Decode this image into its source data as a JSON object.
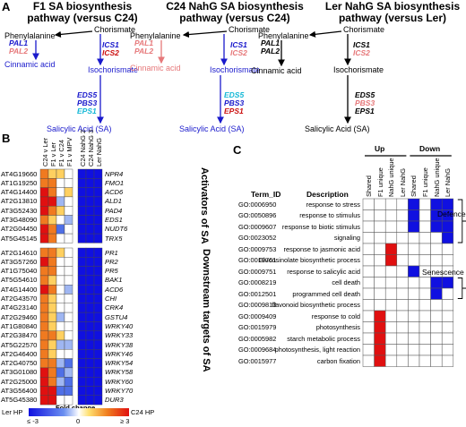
{
  "panel_a": {
    "label": "A",
    "pathways": [
      {
        "title_line1": "F1 SA biosynthesis",
        "title_line2": "pathway (versus C24)"
      },
      {
        "title_line1": "C24 NahG SA biosynthesis",
        "title_line2": "pathway (versus C24)"
      },
      {
        "title_line1": "Ler NahG SA biosynthesis",
        "title_line2": "pathway (versus Ler)"
      }
    ],
    "nodes": {
      "phenylalanine": "Phenylalanine",
      "chorismate": "Chorismate",
      "cinnamic": "Cinnamic acid",
      "isochorismate": "Isochorismate",
      "sa": "Salicylic Acid (SA)",
      "sa2": "Salicylic Acid (SA)",
      "sa3": "Salicylic Acid (SA)"
    },
    "genes": {
      "pal1": "PAL1",
      "pal2": "PAL2",
      "ics1": "ICS1",
      "ics2": "ICS2",
      "eds5": "EDS5",
      "pbs3": "PBS3",
      "eps1": "EPS1"
    }
  },
  "panel_b": {
    "label": "B",
    "columns_left": [
      "C24 v Ler",
      "F1 v Ler",
      "F1 v C24",
      "F1 v MPV"
    ],
    "columns_right": [
      "C24 NahG 2",
      "C24 NahG 3",
      "Ler NahG"
    ],
    "group1_title": "Activators of SA",
    "group2_title": "Downstream targets of SA",
    "group1": [
      {
        "id": "AT4G19660",
        "name": "NPR4"
      },
      {
        "id": "AT1G19250",
        "name": "FMO1"
      },
      {
        "id": "AT4G14400",
        "name": "ACD6"
      },
      {
        "id": "AT2G13810",
        "name": "ALD1"
      },
      {
        "id": "AT3G52430",
        "name": "PAD4"
      },
      {
        "id": "AT3G48090",
        "name": "EDS1"
      },
      {
        "id": "AT2G04450",
        "name": "NUDT6"
      },
      {
        "id": "AT5G45145",
        "name": "TRX5"
      }
    ],
    "group2": [
      {
        "id": "AT2G14610",
        "name": "PR1"
      },
      {
        "id": "AT3G57260",
        "name": "PR2"
      },
      {
        "id": "AT1G75040",
        "name": "PR5"
      },
      {
        "id": "AT5G54610",
        "name": "BAK1"
      },
      {
        "id": "AT4G14400",
        "name": "ACD6"
      },
      {
        "id": "AT2G43570",
        "name": "CHI"
      },
      {
        "id": "AT4G23140",
        "name": "CRK4"
      },
      {
        "id": "AT2G29460",
        "name": "GSTU4"
      },
      {
        "id": "AT1G80840",
        "name": "WRKY40"
      },
      {
        "id": "AT2G38470",
        "name": "WRKY33"
      },
      {
        "id": "AT5G22570",
        "name": "WRKY38"
      },
      {
        "id": "AT2G46400",
        "name": "WRKY46"
      },
      {
        "id": "AT2G40750",
        "name": "WRKY54"
      },
      {
        "id": "AT3G01080",
        "name": "WRKY58"
      },
      {
        "id": "AT2G25000",
        "name": "WRKY60"
      },
      {
        "id": "AT3G56400",
        "name": "WRKY70"
      },
      {
        "id": "AT5G45380",
        "name": "DUR3"
      }
    ],
    "matrix1_left": [
      [
        2,
        1,
        1,
        0
      ],
      [
        2,
        2,
        0,
        0
      ],
      [
        3,
        2,
        0,
        1
      ],
      [
        3,
        3,
        -1,
        0
      ],
      [
        3,
        2,
        1,
        0
      ],
      [
        2,
        1,
        0,
        -1
      ],
      [
        3,
        2,
        -2,
        0
      ],
      [
        3,
        2,
        0,
        0
      ]
    ],
    "matrix1_right": [
      [
        -3,
        -3,
        -3
      ],
      [
        -3,
        -3,
        -3
      ],
      [
        -3,
        -3,
        -3
      ],
      [
        -3,
        -3,
        -3
      ],
      [
        -3,
        -3,
        -3
      ],
      [
        -3,
        -3,
        -3
      ],
      [
        -3,
        -3,
        -3
      ],
      [
        -3,
        -3,
        -3
      ]
    ],
    "matrix2_left": [
      [
        2,
        2,
        1,
        0
      ],
      [
        3,
        2,
        0,
        0
      ],
      [
        2,
        2,
        0,
        0
      ],
      [
        2,
        1,
        0,
        0
      ],
      [
        3,
        2,
        0,
        -1
      ],
      [
        2,
        1,
        0,
        0
      ],
      [
        2,
        1,
        0,
        0
      ],
      [
        2,
        1,
        -1,
        0
      ],
      [
        2,
        1,
        0,
        0
      ],
      [
        2,
        2,
        1,
        0
      ],
      [
        2,
        1,
        -1,
        -1
      ],
      [
        2,
        1,
        0,
        0
      ],
      [
        2,
        2,
        -1,
        -2
      ],
      [
        3,
        2,
        -2,
        -1
      ],
      [
        3,
        2,
        -1,
        -2
      ],
      [
        3,
        3,
        -2,
        -2
      ],
      [
        3,
        3,
        0,
        0
      ]
    ],
    "matrix2_right": [
      [
        -3,
        -3,
        -3
      ],
      [
        -3,
        -3,
        -3
      ],
      [
        -3,
        -3,
        -3
      ],
      [
        -3,
        -3,
        -3
      ],
      [
        -3,
        -3,
        -3
      ],
      [
        -3,
        -3,
        -3
      ],
      [
        -3,
        -3,
        -3
      ],
      [
        -3,
        -3,
        -3
      ],
      [
        -3,
        -3,
        -3
      ],
      [
        -3,
        -3,
        -3
      ],
      [
        -3,
        -3,
        -3
      ],
      [
        -3,
        -3,
        -3
      ],
      [
        -3,
        -3,
        -3
      ],
      [
        -3,
        -3,
        -3
      ],
      [
        -3,
        -3,
        -3
      ],
      [
        -3,
        -3,
        -3
      ],
      [
        -3,
        -3,
        -3
      ]
    ],
    "legend": {
      "title": "Fold change",
      "left_label": "Ler HP",
      "right_label": "C24 HP",
      "min_label": "≤ -3",
      "mid_label": "0",
      "max_label": "≥ 3"
    }
  },
  "panel_c": {
    "label": "C",
    "header_term": "Term_ID",
    "header_desc": "Description",
    "group_up": "Up",
    "group_down": "Down",
    "columns": [
      "Shared",
      "F1 unique",
      "NahG unique",
      "Ler NahG",
      "Shared",
      "F1 unique",
      "NahG unique",
      "Ler NahG"
    ],
    "rows": [
      {
        "id": "GO:0006950",
        "desc": "response to stress",
        "cells": [
          0,
          0,
          0,
          0,
          1,
          0,
          1,
          1
        ]
      },
      {
        "id": "GO:0050896",
        "desc": "response to stimulus",
        "cells": [
          0,
          0,
          0,
          0,
          1,
          0,
          1,
          1
        ]
      },
      {
        "id": "GO:0009607",
        "desc": "response to biotic stimulus",
        "cells": [
          0,
          0,
          0,
          0,
          1,
          0,
          1,
          1
        ]
      },
      {
        "id": "GO:0023052",
        "desc": "signaling",
        "cells": [
          0,
          0,
          0,
          0,
          0,
          0,
          0,
          1
        ]
      },
      {
        "id": "GO:0009753",
        "desc": "response to jasmonic acid",
        "cells": [
          0,
          0,
          2,
          0,
          0,
          0,
          0,
          0
        ]
      },
      {
        "id": "GO:0019761",
        "desc": "Glucosinolate biosynthetic process",
        "cells": [
          0,
          0,
          2,
          0,
          0,
          0,
          0,
          0
        ]
      },
      {
        "id": "GO:0009751",
        "desc": "response to salicylic acid",
        "cells": [
          0,
          0,
          0,
          0,
          1,
          0,
          0,
          0
        ]
      },
      {
        "id": "GO:0008219",
        "desc": "cell death",
        "cells": [
          0,
          0,
          0,
          0,
          0,
          0,
          1,
          1
        ]
      },
      {
        "id": "GO:0012501",
        "desc": "programmed cell death",
        "cells": [
          0,
          0,
          0,
          0,
          0,
          0,
          1,
          0
        ]
      },
      {
        "id": "GO:0009813",
        "desc": "flavonoid biosynthetic process",
        "cells": [
          0,
          0,
          0,
          0,
          0,
          0,
          0,
          0
        ]
      },
      {
        "id": "GO:0009409",
        "desc": "response to cold",
        "cells": [
          0,
          2,
          0,
          0,
          0,
          0,
          0,
          0
        ]
      },
      {
        "id": "GO:0015979",
        "desc": "photosynthesis",
        "cells": [
          0,
          2,
          0,
          0,
          0,
          0,
          0,
          0
        ]
      },
      {
        "id": "GO:0005982",
        "desc": "starch metabolic process",
        "cells": [
          0,
          2,
          0,
          0,
          0,
          0,
          0,
          0
        ]
      },
      {
        "id": "GO:0009684",
        "desc": "photosynthesis, light reaction",
        "cells": [
          0,
          2,
          0,
          0,
          0,
          0,
          0,
          0
        ]
      },
      {
        "id": "GO:0015977",
        "desc": "carbon fixation",
        "cells": [
          0,
          2,
          0,
          0,
          0,
          0,
          0,
          0
        ]
      }
    ],
    "bracket_defence": "Defence",
    "bracket_senescence": "Senescence"
  },
  "colors": {
    "blue": "#1a1acc",
    "red": "#cc1111",
    "pink": "#e6787a",
    "cyan": "#15b8d6",
    "up_red": "#e01010",
    "down_blue": "#1010e0"
  }
}
